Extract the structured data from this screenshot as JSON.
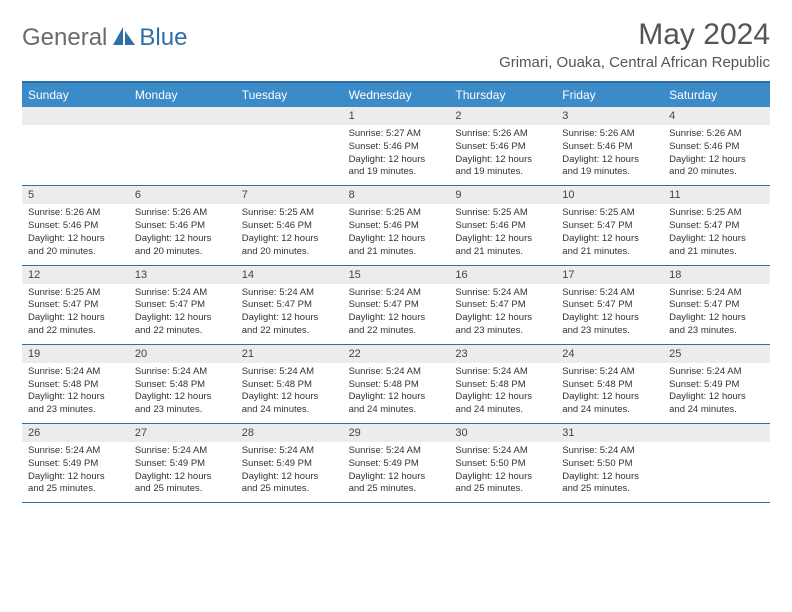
{
  "brand": {
    "part1": "General",
    "part2": "Blue"
  },
  "title": "May 2024",
  "location": "Grimari, Ouaka, Central African Republic",
  "day_names": [
    "Sunday",
    "Monday",
    "Tuesday",
    "Wednesday",
    "Thursday",
    "Friday",
    "Saturday"
  ],
  "colors": {
    "header_bg": "#3b8bc8",
    "border": "#2f6fa8",
    "daynum_bg": "#ececec"
  },
  "weeks": [
    [
      {
        "n": "",
        "sr": "",
        "ss": "",
        "dl": ""
      },
      {
        "n": "",
        "sr": "",
        "ss": "",
        "dl": ""
      },
      {
        "n": "",
        "sr": "",
        "ss": "",
        "dl": ""
      },
      {
        "n": "1",
        "sr": "5:27 AM",
        "ss": "5:46 PM",
        "dl": "12 hours and 19 minutes."
      },
      {
        "n": "2",
        "sr": "5:26 AM",
        "ss": "5:46 PM",
        "dl": "12 hours and 19 minutes."
      },
      {
        "n": "3",
        "sr": "5:26 AM",
        "ss": "5:46 PM",
        "dl": "12 hours and 19 minutes."
      },
      {
        "n": "4",
        "sr": "5:26 AM",
        "ss": "5:46 PM",
        "dl": "12 hours and 20 minutes."
      }
    ],
    [
      {
        "n": "5",
        "sr": "5:26 AM",
        "ss": "5:46 PM",
        "dl": "12 hours and 20 minutes."
      },
      {
        "n": "6",
        "sr": "5:26 AM",
        "ss": "5:46 PM",
        "dl": "12 hours and 20 minutes."
      },
      {
        "n": "7",
        "sr": "5:25 AM",
        "ss": "5:46 PM",
        "dl": "12 hours and 20 minutes."
      },
      {
        "n": "8",
        "sr": "5:25 AM",
        "ss": "5:46 PM",
        "dl": "12 hours and 21 minutes."
      },
      {
        "n": "9",
        "sr": "5:25 AM",
        "ss": "5:46 PM",
        "dl": "12 hours and 21 minutes."
      },
      {
        "n": "10",
        "sr": "5:25 AM",
        "ss": "5:47 PM",
        "dl": "12 hours and 21 minutes."
      },
      {
        "n": "11",
        "sr": "5:25 AM",
        "ss": "5:47 PM",
        "dl": "12 hours and 21 minutes."
      }
    ],
    [
      {
        "n": "12",
        "sr": "5:25 AM",
        "ss": "5:47 PM",
        "dl": "12 hours and 22 minutes."
      },
      {
        "n": "13",
        "sr": "5:24 AM",
        "ss": "5:47 PM",
        "dl": "12 hours and 22 minutes."
      },
      {
        "n": "14",
        "sr": "5:24 AM",
        "ss": "5:47 PM",
        "dl": "12 hours and 22 minutes."
      },
      {
        "n": "15",
        "sr": "5:24 AM",
        "ss": "5:47 PM",
        "dl": "12 hours and 22 minutes."
      },
      {
        "n": "16",
        "sr": "5:24 AM",
        "ss": "5:47 PM",
        "dl": "12 hours and 23 minutes."
      },
      {
        "n": "17",
        "sr": "5:24 AM",
        "ss": "5:47 PM",
        "dl": "12 hours and 23 minutes."
      },
      {
        "n": "18",
        "sr": "5:24 AM",
        "ss": "5:47 PM",
        "dl": "12 hours and 23 minutes."
      }
    ],
    [
      {
        "n": "19",
        "sr": "5:24 AM",
        "ss": "5:48 PM",
        "dl": "12 hours and 23 minutes."
      },
      {
        "n": "20",
        "sr": "5:24 AM",
        "ss": "5:48 PM",
        "dl": "12 hours and 23 minutes."
      },
      {
        "n": "21",
        "sr": "5:24 AM",
        "ss": "5:48 PM",
        "dl": "12 hours and 24 minutes."
      },
      {
        "n": "22",
        "sr": "5:24 AM",
        "ss": "5:48 PM",
        "dl": "12 hours and 24 minutes."
      },
      {
        "n": "23",
        "sr": "5:24 AM",
        "ss": "5:48 PM",
        "dl": "12 hours and 24 minutes."
      },
      {
        "n": "24",
        "sr": "5:24 AM",
        "ss": "5:48 PM",
        "dl": "12 hours and 24 minutes."
      },
      {
        "n": "25",
        "sr": "5:24 AM",
        "ss": "5:49 PM",
        "dl": "12 hours and 24 minutes."
      }
    ],
    [
      {
        "n": "26",
        "sr": "5:24 AM",
        "ss": "5:49 PM",
        "dl": "12 hours and 25 minutes."
      },
      {
        "n": "27",
        "sr": "5:24 AM",
        "ss": "5:49 PM",
        "dl": "12 hours and 25 minutes."
      },
      {
        "n": "28",
        "sr": "5:24 AM",
        "ss": "5:49 PM",
        "dl": "12 hours and 25 minutes."
      },
      {
        "n": "29",
        "sr": "5:24 AM",
        "ss": "5:49 PM",
        "dl": "12 hours and 25 minutes."
      },
      {
        "n": "30",
        "sr": "5:24 AM",
        "ss": "5:50 PM",
        "dl": "12 hours and 25 minutes."
      },
      {
        "n": "31",
        "sr": "5:24 AM",
        "ss": "5:50 PM",
        "dl": "12 hours and 25 minutes."
      },
      {
        "n": "",
        "sr": "",
        "ss": "",
        "dl": ""
      }
    ]
  ],
  "labels": {
    "sunrise": "Sunrise:",
    "sunset": "Sunset:",
    "daylight": "Daylight:"
  }
}
